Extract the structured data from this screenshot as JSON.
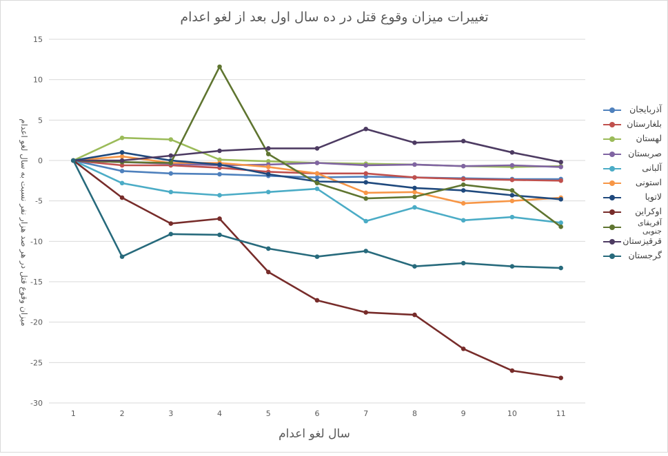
{
  "chart_data": {
    "type": "line",
    "title": "تغییرات میزان وقوع قتل در ده سال اول بعد از لغو اعدام",
    "xlabel": "سال لغو اعدام",
    "ylabel": "میزان وقوع قتل در هر صد هزار نفر نسبت به سال لغو اعدام",
    "x": [
      1,
      2,
      3,
      4,
      5,
      6,
      7,
      8,
      9,
      10,
      11
    ],
    "ylim": [
      -30,
      15
    ],
    "yticks": [
      15,
      10,
      5,
      0,
      -5,
      -10,
      -15,
      -20,
      -25,
      -30
    ],
    "grid": true,
    "legend_position": "right",
    "series": [
      {
        "name": "آذربایجان",
        "color": "#4f81bd",
        "values": [
          0,
          -1.3,
          -1.6,
          -1.7,
          -1.9,
          -2.1,
          -2.0,
          -2.1,
          -2.2,
          -2.3,
          -2.3
        ]
      },
      {
        "name": "بلغارستان",
        "color": "#c0504d",
        "values": [
          0,
          -0.6,
          -0.6,
          -0.9,
          -1.4,
          -1.6,
          -1.6,
          -2.1,
          -2.3,
          -2.4,
          -2.5
        ]
      },
      {
        "name": "لهستان",
        "color": "#9bbb59",
        "values": [
          0,
          2.8,
          2.6,
          0.1,
          -0.1,
          -0.3,
          -0.4,
          -0.5,
          -0.7,
          -0.8,
          -0.7
        ]
      },
      {
        "name": "صربستان",
        "color": "#8064a2",
        "values": [
          0,
          -0.2,
          -0.4,
          -0.6,
          -0.5,
          -0.3,
          -0.6,
          -0.5,
          -0.7,
          -0.6,
          -0.8
        ]
      },
      {
        "name": "آلبانی",
        "color": "#4bacc6",
        "values": [
          0,
          -2.8,
          -3.9,
          -4.3,
          -3.9,
          -3.5,
          -7.5,
          -5.8,
          -7.4,
          -7.0,
          -7.7
        ]
      },
      {
        "name": "استونی",
        "color": "#f79646",
        "values": [
          0,
          0.5,
          -0.3,
          -0.3,
          -0.8,
          -1.6,
          -4.0,
          -3.9,
          -5.3,
          -5.0,
          -4.6
        ]
      },
      {
        "name": "لاتویا",
        "color": "#1f497d",
        "values": [
          0,
          1.0,
          0.0,
          -0.5,
          -1.7,
          -2.6,
          -2.7,
          -3.4,
          -3.7,
          -4.3,
          -4.8
        ]
      },
      {
        "name": "اوکراین",
        "color": "#772c2a",
        "values": [
          0,
          -4.6,
          -7.8,
          -7.2,
          -13.8,
          -17.3,
          -18.8,
          -19.1,
          -23.3,
          -26.0,
          -26.9
        ]
      },
      {
        "name": "آفریقای جنوبی",
        "color": "#5f7530",
        "values": [
          0,
          -0.2,
          -0.3,
          11.6,
          0.8,
          -2.8,
          -4.7,
          -4.5,
          -3.0,
          -3.7,
          -8.2
        ]
      },
      {
        "name": "قرقیزستان",
        "color": "#4d3b62",
        "values": [
          0,
          0.0,
          0.6,
          1.2,
          1.5,
          1.5,
          3.9,
          2.2,
          2.4,
          1.0,
          -0.2
        ]
      },
      {
        "name": "گرجستان",
        "color": "#276a7c",
        "values": [
          0,
          -11.9,
          -9.1,
          -9.2,
          -10.9,
          -11.9,
          -11.2,
          -13.1,
          -12.7,
          -13.1,
          -13.3
        ]
      }
    ]
  }
}
